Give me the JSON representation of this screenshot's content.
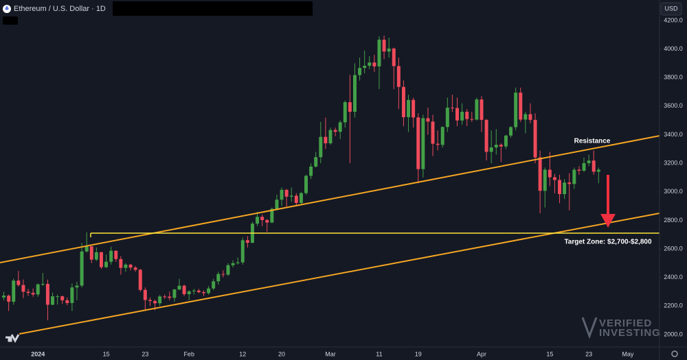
{
  "chart_data": {
    "type": "candlestick",
    "title": "Ethereum / U.S. Dollar · 1D",
    "currency": "USD",
    "watermark": [
      "VERIFIED",
      "INVESTING"
    ],
    "annotations": [
      "Resistance",
      "Target Zone: $2,700-$2,800"
    ],
    "up_color": "#43a047",
    "down_color": "#ef4b5b",
    "categories": [
      null,
      null,
      null,
      null,
      null,
      null,
      null,
      "2024",
      null,
      null,
      null,
      null,
      null,
      null,
      null,
      null,
      null,
      null,
      null,
      null,
      null,
      "15",
      null,
      null,
      null,
      null,
      null,
      null,
      null,
      "23",
      null,
      null,
      null,
      null,
      null,
      null,
      null,
      null,
      "Feb",
      null,
      null,
      null,
      null,
      null,
      null,
      null,
      null,
      null,
      null,
      "12",
      null,
      null,
      null,
      null,
      null,
      null,
      null,
      "20",
      null,
      null,
      null,
      null,
      null,
      null,
      null,
      null,
      null,
      "Mar",
      null,
      null,
      null,
      null,
      null,
      null,
      null,
      null,
      null,
      "11",
      null,
      null,
      null,
      null,
      null,
      null,
      null,
      "19",
      null,
      null,
      null,
      null,
      null,
      null,
      null,
      null,
      null,
      null,
      null,
      null,
      "Apr",
      null,
      null,
      null,
      null,
      null,
      null,
      null,
      null,
      null,
      null,
      null,
      null,
      null,
      "15",
      null,
      null,
      null,
      null,
      null,
      null,
      null,
      "23",
      null,
      null,
      null,
      null,
      null,
      null,
      null,
      "May",
      null,
      null,
      null,
      null,
      null,
      null
    ],
    "open": [
      2260,
      2273,
      2230,
      2378,
      2347,
      2300,
      2292,
      2281,
      2352,
      2355,
      2209,
      2268,
      2268,
      2240,
      2221,
      2330,
      2343,
      2582,
      2618,
      2525,
      2577,
      2472,
      2510,
      2587,
      2529,
      2467,
      2490,
      2469,
      2454,
      2313,
      2242,
      2235,
      2219,
      2267,
      2266,
      2257,
      2316,
      2342,
      2283,
      2303,
      2308,
      2297,
      2290,
      2323,
      2373,
      2424,
      2420,
      2486,
      2500,
      2506,
      2661,
      2643,
      2777,
      2825,
      2802,
      2785,
      2881,
      2945,
      3014,
      2966,
      2973,
      2922,
      2991,
      3112,
      3177,
      3243,
      3385,
      3340,
      3433,
      3421,
      3487,
      3628,
      3561,
      3818,
      3868,
      3883,
      3906,
      3879,
      4066,
      3983,
      4004,
      3881,
      3735,
      3523,
      3644,
      3521,
      3159,
      3516,
      3492,
      3337,
      3329,
      3454,
      3590,
      3587,
      3500,
      3561,
      3510,
      3506,
      3647,
      3504,
      3280,
      3311,
      3330,
      3318,
      3394,
      3453,
      3695,
      3506,
      3544,
      3504,
      3241,
      3007,
      3155,
      3102,
      3083,
      2984,
      3065,
      3055,
      3155,
      3148,
      3201,
      3219,
      3141,
      null,
      null,
      null,
      null,
      null,
      null,
      null,
      null,
      null,
      null,
      null,
      null
    ],
    "high": [
      2300,
      2280,
      2392,
      2446,
      2386,
      2320,
      2323,
      2358,
      2431,
      2385,
      2294,
      2280,
      2273,
      2260,
      2358,
      2370,
      2643,
      2717,
      2620,
      2610,
      2580,
      2560,
      2615,
      2590,
      2550,
      2500,
      2495,
      2480,
      2460,
      2330,
      2260,
      2245,
      2277,
      2280,
      2300,
      2320,
      2390,
      2350,
      2310,
      2320,
      2320,
      2310,
      2340,
      2390,
      2440,
      2450,
      2500,
      2520,
      2540,
      2680,
      2690,
      2790,
      2860,
      2840,
      2810,
      2890,
      2980,
      3030,
      3020,
      3030,
      2990,
      3000,
      3120,
      3200,
      3280,
      3490,
      3520,
      3450,
      3450,
      3500,
      3640,
      3820,
      3900,
      3940,
      3990,
      3950,
      3960,
      4090,
      4095,
      4080,
      4010,
      3940,
      3780,
      3680,
      3660,
      3550,
      3540,
      3590,
      3540,
      3430,
      3460,
      3660,
      3680,
      3660,
      3620,
      3580,
      3560,
      3660,
      3670,
      3510,
      3430,
      3440,
      3340,
      3400,
      3460,
      3730,
      3730,
      3560,
      3620,
      3550,
      3290,
      3170,
      3280,
      3125,
      3120,
      3090,
      3130,
      3170,
      3180,
      3240,
      3260,
      3290,
      3170,
      null,
      null,
      null,
      null,
      null,
      null,
      null,
      null,
      null,
      null,
      null,
      null
    ],
    "low": [
      2240,
      2165,
      2210,
      2336,
      2255,
      2270,
      2265,
      2265,
      2340,
      2100,
      2206,
      2210,
      2215,
      2205,
      2165,
      2240,
      2330,
      2575,
      2500,
      2515,
      2460,
      2465,
      2490,
      2510,
      2420,
      2440,
      2450,
      2440,
      2300,
      2170,
      2200,
      2170,
      2200,
      2250,
      2240,
      2230,
      2310,
      2270,
      2240,
      2280,
      2290,
      2270,
      2280,
      2310,
      2350,
      2400,
      2410,
      2470,
      2490,
      2490,
      2610,
      2640,
      2760,
      2760,
      2720,
      2780,
      2870,
      2900,
      2890,
      2930,
      2900,
      2915,
      2980,
      3090,
      3170,
      3200,
      3300,
      3330,
      3390,
      3370,
      3450,
      3200,
      3520,
      3780,
      3830,
      3860,
      3840,
      3720,
      3930,
      3940,
      3720,
      3580,
      3460,
      3420,
      3450,
      3060,
      3100,
      3400,
      3250,
      3290,
      3310,
      3420,
      3560,
      3460,
      3470,
      3460,
      3490,
      3500,
      3420,
      3220,
      3200,
      3260,
      3210,
      3300,
      3380,
      3430,
      3490,
      3410,
      3480,
      3200,
      2850,
      2890,
      3040,
      2990,
      2920,
      2950,
      2870,
      3020,
      3120,
      3140,
      3180,
      3120,
      3060,
      null,
      null,
      null,
      null,
      null,
      null,
      null,
      null,
      null,
      null,
      null,
      null
    ],
    "close": [
      2273,
      2230,
      2378,
      2347,
      2300,
      2292,
      2281,
      2352,
      2355,
      2209,
      2268,
      2268,
      2240,
      2221,
      2330,
      2343,
      2582,
      2618,
      2525,
      2577,
      2472,
      2510,
      2587,
      2529,
      2467,
      2490,
      2469,
      2454,
      2313,
      2242,
      2235,
      2219,
      2267,
      2266,
      2257,
      2316,
      2342,
      2283,
      2303,
      2308,
      2297,
      2290,
      2323,
      2373,
      2424,
      2420,
      2486,
      2500,
      2506,
      2661,
      2643,
      2777,
      2825,
      2802,
      2785,
      2881,
      2945,
      3014,
      2966,
      2973,
      2922,
      2991,
      3112,
      3177,
      3243,
      3385,
      3340,
      3433,
      3421,
      3487,
      3628,
      3561,
      3818,
      3868,
      3883,
      3906,
      3879,
      4066,
      3983,
      4004,
      3881,
      3735,
      3523,
      3644,
      3521,
      3159,
      3516,
      3492,
      3337,
      3329,
      3454,
      3590,
      3587,
      3500,
      3561,
      3510,
      3506,
      3647,
      3504,
      3280,
      3311,
      3330,
      3318,
      3394,
      3453,
      3695,
      3506,
      3544,
      3504,
      3241,
      3007,
      3155,
      3102,
      3083,
      2984,
      3065,
      3055,
      3155,
      3148,
      3201,
      3219,
      3141,
      3155,
      null,
      null,
      null,
      null,
      null,
      null,
      null,
      null,
      null,
      null,
      null,
      null
    ],
    "ylim": [
      1913,
      4344
    ],
    "yticks": [
      {
        "value": 2000,
        "label": "2000.0"
      },
      {
        "value": 2200,
        "label": "2200.0"
      },
      {
        "value": 2400,
        "label": "2400.0"
      },
      {
        "value": 2600,
        "label": "2600.0"
      },
      {
        "value": 2800,
        "label": "2800.0"
      },
      {
        "value": 3000,
        "label": "3000.0"
      },
      {
        "value": 3200,
        "label": "3200.0"
      },
      {
        "value": 3400,
        "label": "3400.0"
      },
      {
        "value": 3600,
        "label": "3600.0"
      },
      {
        "value": 3800,
        "label": "3800.0"
      },
      {
        "value": 4000,
        "label": "4000.0"
      },
      {
        "value": 4200,
        "label": "4200.0"
      }
    ],
    "grid": false,
    "log_scale": false
  }
}
